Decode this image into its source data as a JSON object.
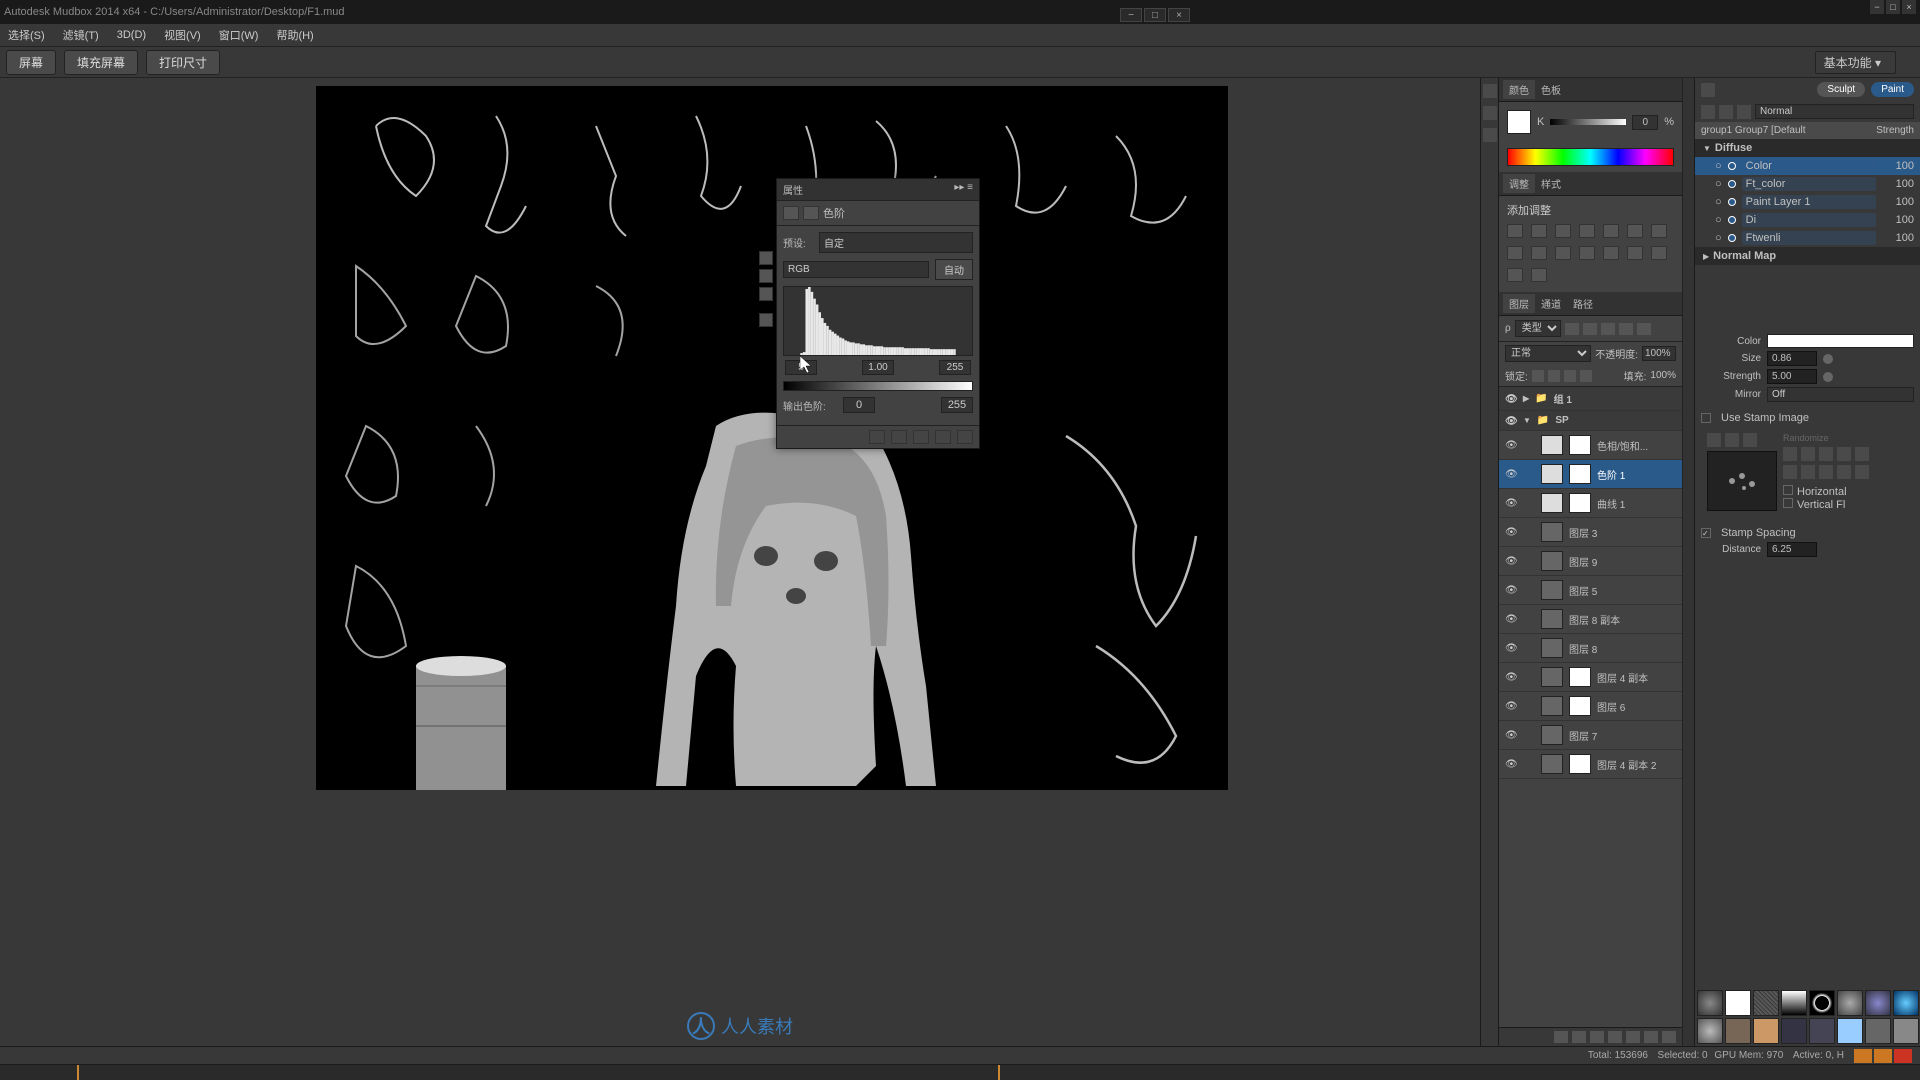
{
  "titlebar": "Autodesk Mudbox 2014 x64 - C:/Users/Administrator/Desktop/F1.mud",
  "menu": {
    "select": "选择(S)",
    "filter": "滤镜(T)",
    "threed": "3D(D)",
    "view": "视图(V)",
    "window": "窗口(W)",
    "help": "帮助(H)"
  },
  "toolbar": {
    "screen": "屏幕",
    "fillscreen": "填充屏幕",
    "printsize": "打印尺寸",
    "mode": "基本功能"
  },
  "properties": {
    "title": "属性",
    "tab_label": "色阶",
    "preset_label": "预设:",
    "preset_value": "自定",
    "channel": "RGB",
    "auto": "自动",
    "in_low": "5",
    "in_mid": "1.00",
    "in_high": "255",
    "out_label": "输出色阶:",
    "out_low": "0",
    "out_high": "255"
  },
  "histogram": {
    "bars": [
      2,
      3,
      68,
      70,
      65,
      58,
      52,
      44,
      38,
      33,
      30,
      26,
      24,
      22,
      20,
      18,
      17,
      15,
      14,
      13,
      13,
      12,
      12,
      11,
      11,
      10,
      10,
      10,
      9,
      9,
      9,
      9,
      8,
      8,
      8,
      8,
      8,
      8,
      8,
      8,
      7,
      7,
      7,
      7,
      7,
      7,
      7,
      7,
      7,
      7,
      6,
      6,
      6,
      6,
      6,
      6,
      6,
      6,
      6,
      6
    ],
    "bg": "#333333",
    "bar_color": "#e8e8e8"
  },
  "color_panel": {
    "tab1": "颜色",
    "tab2": "色板",
    "k_label": "K",
    "k_val": "0",
    "k_unit": "%"
  },
  "adjust_panel": {
    "tab1": "调整",
    "tab2": "样式",
    "title": "添加调整"
  },
  "layers_panel": {
    "tab1": "图层",
    "tab2": "通道",
    "tab3": "路径",
    "type_label": "类型",
    "blend_mode": "正常",
    "opacity_label": "不透明度:",
    "opacity": "100%",
    "lock_label": "锁定:",
    "fill_label": "填充:",
    "fill": "100%",
    "layers": [
      {
        "name": "组 1",
        "group": true,
        "open": false
      },
      {
        "name": "SP",
        "group": true,
        "open": true
      },
      {
        "name": "色相/饱和...",
        "adj": true
      },
      {
        "name": "色阶 1",
        "adj": true,
        "selected": true
      },
      {
        "name": "曲线 1",
        "adj": true
      },
      {
        "name": "图层 3"
      },
      {
        "name": "图层 9"
      },
      {
        "name": "图层 5"
      },
      {
        "name": "图层 8 副本"
      },
      {
        "name": "图层 8"
      },
      {
        "name": "图层 4 副本",
        "mask": true
      },
      {
        "name": "图层 6",
        "mask": true
      },
      {
        "name": "图层 7"
      },
      {
        "name": "图层 4 副本 2",
        "mask": true
      }
    ]
  },
  "paint_panel": {
    "sculpt": "Sculpt",
    "paint": "Paint",
    "blend": "Normal",
    "header": "group1 Group7 [Default",
    "strength": "Strength",
    "groups": [
      {
        "name": "Diffuse",
        "open": true,
        "layers": [
          {
            "name": "Color",
            "val": "100",
            "sel": true
          },
          {
            "name": "Ft_color",
            "val": "100"
          },
          {
            "name": "Paint Layer 1",
            "val": "100"
          },
          {
            "name": "Di",
            "val": "100"
          },
          {
            "name": "Ftwenli",
            "val": "100"
          }
        ]
      },
      {
        "name": "Normal Map",
        "open": false,
        "layers": []
      }
    ]
  },
  "brush_props": {
    "color_label": "Color",
    "size_label": "Size",
    "size_val": "0.86",
    "strength_label": "Strength",
    "strength_val": "5.00",
    "mirror_label": "Mirror",
    "mirror_val": "Off",
    "use_stamp": "Use Stamp Image",
    "horizontal": "Horizontal",
    "vertical": "Vertical Fl",
    "randomize": "Randomize",
    "stamp_spacing": "Stamp Spacing",
    "distance_label": "Distance",
    "distance_val": "6.25"
  },
  "status": {
    "total": "Total: 153696",
    "selected": "Selected: 0",
    "gpu": "GPU Mem: 970",
    "active": "Active: 0, H"
  },
  "watermark": "人人素材",
  "colors": {
    "bg": "#383838",
    "panel": "#424242",
    "dark": "#2a2a2a",
    "accent": "#2a5a8a"
  }
}
